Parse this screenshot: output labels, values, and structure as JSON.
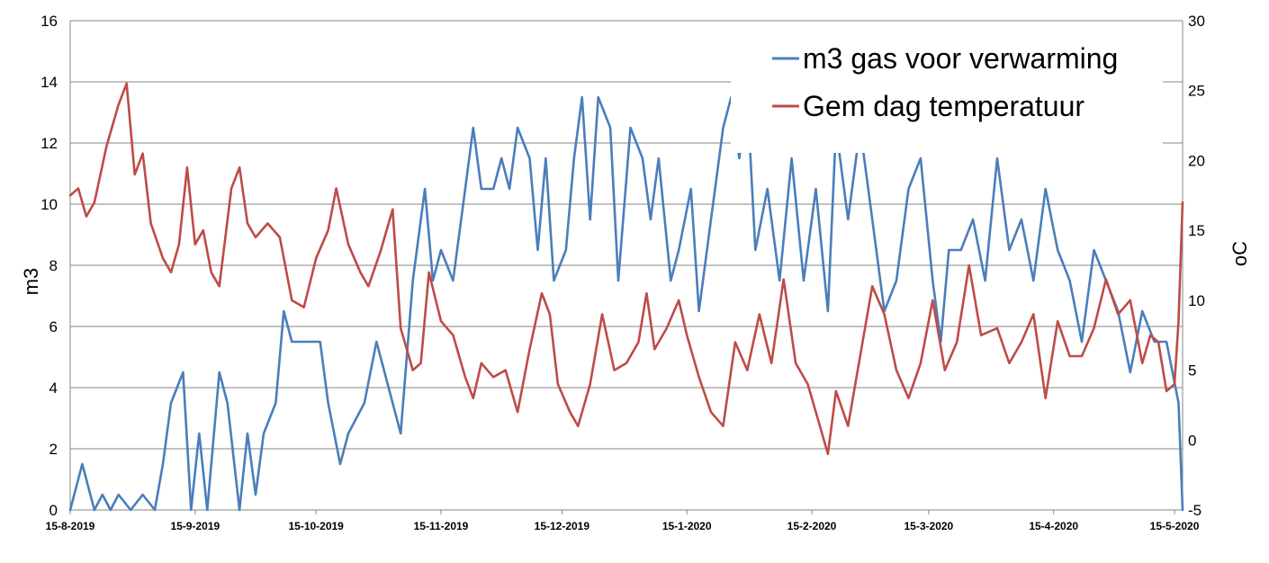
{
  "chart_data": {
    "type": "line",
    "x_start": "15-8-2019",
    "x_end": "17-5-2020",
    "x_ticks": [
      "15-8-2019",
      "15-9-2019",
      "15-10-2019",
      "15-11-2019",
      "15-12-2019",
      "15-1-2020",
      "15-2-2020",
      "15-3-2020",
      "15-4-2020",
      "15-5-2020"
    ],
    "y_left": {
      "label": "m3",
      "lim": [
        0,
        16
      ],
      "ticks": [
        "0",
        "2",
        "4",
        "6",
        "8",
        "10",
        "12",
        "14",
        "16"
      ]
    },
    "y_right": {
      "label": "oC",
      "lim": [
        -5,
        30
      ],
      "ticks": [
        "-5",
        "0",
        "5",
        "10",
        "15",
        "20",
        "25",
        "30"
      ]
    },
    "grid": "horizontal",
    "legend": {
      "position": "top-right"
    },
    "series": [
      {
        "name": "m3 gas voor verwarming",
        "axis": "left",
        "color": "#4a7ebb",
        "points": [
          [
            "15-8-2019",
            0
          ],
          [
            "18-8-2019",
            1.5
          ],
          [
            "21-8-2019",
            0
          ],
          [
            "23-8-2019",
            0.5
          ],
          [
            "25-8-2019",
            0
          ],
          [
            "27-8-2019",
            0.5
          ],
          [
            "30-8-2019",
            0
          ],
          [
            "2-9-2019",
            0.5
          ],
          [
            "5-9-2019",
            0
          ],
          [
            "7-9-2019",
            1.5
          ],
          [
            "9-9-2019",
            3.5
          ],
          [
            "12-9-2019",
            4.5
          ],
          [
            "14-9-2019",
            0
          ],
          [
            "16-9-2019",
            2.5
          ],
          [
            "18-9-2019",
            0
          ],
          [
            "21-9-2019",
            4.5
          ],
          [
            "23-9-2019",
            3.5
          ],
          [
            "26-9-2019",
            0
          ],
          [
            "28-9-2019",
            2.5
          ],
          [
            "30-9-2019",
            0.5
          ],
          [
            "2-10-2019",
            2.5
          ],
          [
            "5-10-2019",
            3.5
          ],
          [
            "7-10-2019",
            6.5
          ],
          [
            "9-10-2019",
            5.5
          ],
          [
            "16-10-2019",
            5.5
          ],
          [
            "18-10-2019",
            3.5
          ],
          [
            "21-10-2019",
            1.5
          ],
          [
            "23-10-2019",
            2.5
          ],
          [
            "27-10-2019",
            3.5
          ],
          [
            "30-10-2019",
            5.5
          ],
          [
            "1-11-2019",
            4.5
          ],
          [
            "5-11-2019",
            2.5
          ],
          [
            "8-11-2019",
            7.5
          ],
          [
            "11-11-2019",
            10.5
          ],
          [
            "13-11-2019",
            7.5
          ],
          [
            "15-11-2019",
            8.5
          ],
          [
            "18-11-2019",
            7.5
          ],
          [
            "21-11-2019",
            10.5
          ],
          [
            "23-11-2019",
            12.5
          ],
          [
            "25-11-2019",
            10.5
          ],
          [
            "28-11-2019",
            10.5
          ],
          [
            "30-11-2019",
            11.5
          ],
          [
            "2-12-2019",
            10.5
          ],
          [
            "4-12-2019",
            12.5
          ],
          [
            "7-12-2019",
            11.5
          ],
          [
            "9-12-2019",
            8.5
          ],
          [
            "11-12-2019",
            11.5
          ],
          [
            "13-12-2019",
            7.5
          ],
          [
            "16-12-2019",
            8.5
          ],
          [
            "18-12-2019",
            11.5
          ],
          [
            "20-12-2019",
            13.5
          ],
          [
            "22-12-2019",
            9.5
          ],
          [
            "24-12-2019",
            13.5
          ],
          [
            "27-12-2019",
            12.5
          ],
          [
            "29-12-2019",
            7.5
          ],
          [
            "1-1-2020",
            12.5
          ],
          [
            "4-1-2020",
            11.5
          ],
          [
            "6-1-2020",
            9.5
          ],
          [
            "8-1-2020",
            11.5
          ],
          [
            "11-1-2020",
            7.5
          ],
          [
            "13-1-2020",
            8.5
          ],
          [
            "16-1-2020",
            10.5
          ],
          [
            "18-1-2020",
            6.5
          ],
          [
            "21-1-2020",
            9.5
          ],
          [
            "24-1-2020",
            12.5
          ],
          [
            "26-1-2020",
            13.5
          ],
          [
            "28-1-2020",
            11.5
          ],
          [
            "30-1-2020",
            13.5
          ],
          [
            "1-2-2020",
            8.5
          ],
          [
            "4-2-2020",
            10.5
          ],
          [
            "7-2-2020",
            7.5
          ],
          [
            "10-2-2020",
            11.5
          ],
          [
            "13-2-2020",
            7.5
          ],
          [
            "16-2-2020",
            10.5
          ],
          [
            "19-2-2020",
            6.5
          ],
          [
            "21-2-2020",
            12.5
          ],
          [
            "24-2-2020",
            9.5
          ],
          [
            "27-2-2020",
            12.5
          ],
          [
            "1-3-2020",
            9.5
          ],
          [
            "4-3-2020",
            6.5
          ],
          [
            "7-3-2020",
            7.5
          ],
          [
            "10-3-2020",
            10.5
          ],
          [
            "13-3-2020",
            11.5
          ],
          [
            "16-3-2020",
            7.5
          ],
          [
            "18-3-2020",
            5.5
          ],
          [
            "20-3-2020",
            8.5
          ],
          [
            "23-3-2020",
            8.5
          ],
          [
            "26-3-2020",
            9.5
          ],
          [
            "29-3-2020",
            7.5
          ],
          [
            "1-4-2020",
            11.5
          ],
          [
            "4-4-2020",
            8.5
          ],
          [
            "7-4-2020",
            9.5
          ],
          [
            "10-4-2020",
            7.5
          ],
          [
            "13-4-2020",
            10.5
          ],
          [
            "16-4-2020",
            8.5
          ],
          [
            "19-4-2020",
            7.5
          ],
          [
            "22-4-2020",
            5.5
          ],
          [
            "25-4-2020",
            8.5
          ],
          [
            "28-4-2020",
            7.5
          ],
          [
            "1-5-2020",
            6.5
          ],
          [
            "4-5-2020",
            4.5
          ],
          [
            "7-5-2020",
            6.5
          ],
          [
            "10-5-2020",
            5.5
          ],
          [
            "13-5-2020",
            5.5
          ],
          [
            "16-5-2020",
            3.5
          ],
          [
            "17-5-2020",
            0
          ]
        ]
      },
      {
        "name": "Gem dag temperatuur",
        "axis": "right",
        "color": "#be4b48",
        "points": [
          [
            "15-8-2019",
            17.5
          ],
          [
            "17-8-2019",
            18
          ],
          [
            "19-8-2019",
            16
          ],
          [
            "21-8-2019",
            17
          ],
          [
            "24-8-2019",
            21
          ],
          [
            "27-8-2019",
            24
          ],
          [
            "29-8-2019",
            25.5
          ],
          [
            "31-8-2019",
            19
          ],
          [
            "2-9-2019",
            20.5
          ],
          [
            "4-9-2019",
            15.5
          ],
          [
            "7-9-2019",
            13
          ],
          [
            "9-9-2019",
            12
          ],
          [
            "11-9-2019",
            14
          ],
          [
            "13-9-2019",
            19.5
          ],
          [
            "15-9-2019",
            14
          ],
          [
            "17-9-2019",
            15
          ],
          [
            "19-9-2019",
            12
          ],
          [
            "21-9-2019",
            11
          ],
          [
            "24-9-2019",
            18
          ],
          [
            "26-9-2019",
            19.5
          ],
          [
            "28-9-2019",
            15.5
          ],
          [
            "30-9-2019",
            14.5
          ],
          [
            "3-10-2019",
            15.5
          ],
          [
            "6-10-2019",
            14.5
          ],
          [
            "9-10-2019",
            10
          ],
          [
            "12-10-2019",
            9.5
          ],
          [
            "15-10-2019",
            13
          ],
          [
            "18-10-2019",
            15
          ],
          [
            "20-10-2019",
            18
          ],
          [
            "23-10-2019",
            14
          ],
          [
            "26-10-2019",
            12
          ],
          [
            "28-10-2019",
            11
          ],
          [
            "31-10-2019",
            13.5
          ],
          [
            "3-11-2019",
            16.5
          ],
          [
            "5-11-2019",
            8
          ],
          [
            "8-11-2019",
            5
          ],
          [
            "10-11-2019",
            5.5
          ],
          [
            "12-11-2019",
            12
          ],
          [
            "15-11-2019",
            8.5
          ],
          [
            "18-11-2019",
            7.5
          ],
          [
            "21-11-2019",
            4.5
          ],
          [
            "23-11-2019",
            3
          ],
          [
            "25-11-2019",
            5.5
          ],
          [
            "28-11-2019",
            4.5
          ],
          [
            "1-12-2019",
            5
          ],
          [
            "4-12-2019",
            2
          ],
          [
            "7-12-2019",
            6.5
          ],
          [
            "10-12-2019",
            10.5
          ],
          [
            "12-12-2019",
            9
          ],
          [
            "14-12-2019",
            4
          ],
          [
            "17-12-2019",
            2
          ],
          [
            "19-12-2019",
            1
          ],
          [
            "22-12-2019",
            4
          ],
          [
            "25-12-2019",
            9
          ],
          [
            "28-12-2019",
            5
          ],
          [
            "31-12-2019",
            5.5
          ],
          [
            "3-1-2020",
            7
          ],
          [
            "5-1-2020",
            10.5
          ],
          [
            "7-1-2020",
            6.5
          ],
          [
            "10-1-2020",
            8
          ],
          [
            "13-1-2020",
            10
          ],
          [
            "15-1-2020",
            7.5
          ],
          [
            "18-1-2020",
            4.5
          ],
          [
            "21-1-2020",
            2
          ],
          [
            "24-1-2020",
            1
          ],
          [
            "27-1-2020",
            7
          ],
          [
            "30-1-2020",
            5
          ],
          [
            "2-2-2020",
            9
          ],
          [
            "5-2-2020",
            5.5
          ],
          [
            "8-2-2020",
            11.5
          ],
          [
            "11-2-2020",
            5.5
          ],
          [
            "14-2-2020",
            4
          ],
          [
            "17-2-2020",
            1
          ],
          [
            "19-2-2020",
            -1
          ],
          [
            "21-2-2020",
            3.5
          ],
          [
            "24-2-2020",
            1
          ],
          [
            "27-2-2020",
            6
          ],
          [
            "1-3-2020",
            11
          ],
          [
            "4-3-2020",
            9
          ],
          [
            "7-3-2020",
            5
          ],
          [
            "10-3-2020",
            3
          ],
          [
            "13-3-2020",
            5.5
          ],
          [
            "16-3-2020",
            10
          ],
          [
            "19-3-2020",
            5
          ],
          [
            "22-3-2020",
            7
          ],
          [
            "25-3-2020",
            12.5
          ],
          [
            "28-3-2020",
            7.5
          ],
          [
            "1-4-2020",
            8
          ],
          [
            "4-4-2020",
            5.5
          ],
          [
            "7-4-2020",
            7
          ],
          [
            "10-4-2020",
            9
          ],
          [
            "13-4-2020",
            3
          ],
          [
            "16-4-2020",
            8.5
          ],
          [
            "19-4-2020",
            6
          ],
          [
            "22-4-2020",
            6
          ],
          [
            "25-4-2020",
            8
          ],
          [
            "28-4-2020",
            11.5
          ],
          [
            "1-5-2020",
            9
          ],
          [
            "4-5-2020",
            10
          ],
          [
            "7-5-2020",
            5.5
          ],
          [
            "9-5-2020",
            7.5
          ],
          [
            "11-5-2020",
            7
          ],
          [
            "13-5-2020",
            3.5
          ],
          [
            "15-5-2020",
            4
          ],
          [
            "16-5-2020",
            8.5
          ],
          [
            "17-5-2020",
            17
          ]
        ]
      }
    ]
  }
}
